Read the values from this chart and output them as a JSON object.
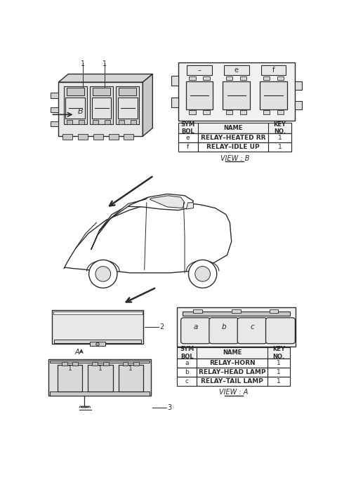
{
  "bg_color": "#ffffff",
  "line_color": "#2a2a2a",
  "table_b": {
    "headers": [
      "SYM\nBOL",
      "NAME",
      "KEY\nNO."
    ],
    "rows": [
      [
        "e",
        "RELAY–HEATED RR",
        "1"
      ],
      [
        "f",
        "RELAY–IDLE UP",
        "1"
      ]
    ],
    "view": "VIEW : B"
  },
  "table_a": {
    "headers": [
      "SYM\nBOL",
      "NAME",
      "KEY\nNO."
    ],
    "rows": [
      [
        "a",
        "RELAY–HORN",
        "1"
      ],
      [
        "b",
        "RELAY–HEAD LAMP",
        "1"
      ],
      [
        "c",
        "RELAY–TAIL LAMP",
        "1"
      ]
    ],
    "view": "VIEW : A"
  }
}
